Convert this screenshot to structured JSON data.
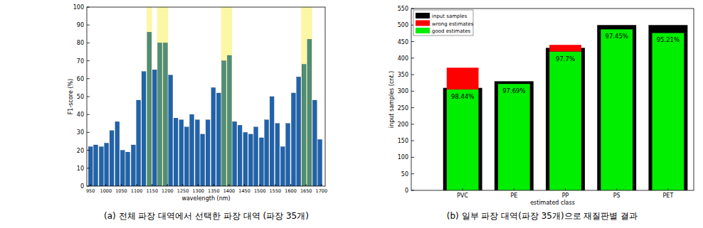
{
  "chart_data": [
    {
      "type": "bar",
      "x_label": "wavelength (nm)",
      "y_label": "F1-score (%)",
      "caption": "(a) 전체 파장 대역에서 선택한 파장 대역 (파장 35개)",
      "x": [
        950,
        967,
        985,
        1002,
        1019,
        1037,
        1054,
        1071,
        1089,
        1106,
        1123,
        1141,
        1158,
        1175,
        1193,
        1210,
        1227,
        1245,
        1262,
        1279,
        1297,
        1314,
        1331,
        1349,
        1366,
        1383,
        1401,
        1418,
        1435,
        1453,
        1470,
        1487,
        1505,
        1522,
        1539,
        1557,
        1574,
        1591,
        1609,
        1626,
        1643,
        1661,
        1678,
        1695
      ],
      "values": [
        22,
        23,
        22,
        24,
        31,
        36,
        20,
        19,
        23,
        48,
        64,
        86,
        65,
        80,
        80,
        62,
        38,
        37,
        33,
        40,
        37,
        29,
        37,
        55,
        52,
        70,
        73,
        36,
        34,
        30,
        29,
        33,
        27,
        37,
        50,
        35,
        22,
        35,
        52,
        61,
        68,
        82,
        48,
        26
      ],
      "colors": [
        "#1f63ad",
        "#1f63ad",
        "#1f63ad",
        "#1f63ad",
        "#1f63ad",
        "#1f63ad",
        "#1f63ad",
        "#1f63ad",
        "#1f63ad",
        "#1f63ad",
        "#1f63ad",
        "#4d8f7a",
        "#1f63ad",
        "#4d8f7a",
        "#4d8f7a",
        "#1f63ad",
        "#1f63ad",
        "#1f63ad",
        "#1f63ad",
        "#1f63ad",
        "#1f63ad",
        "#1f63ad",
        "#1f63ad",
        "#1f63ad",
        "#1f63ad",
        "#4d8f7a",
        "#4d8f7a",
        "#1f63ad",
        "#1f63ad",
        "#1f63ad",
        "#1f63ad",
        "#1f63ad",
        "#1f63ad",
        "#1f63ad",
        "#1f63ad",
        "#1f63ad",
        "#1f63ad",
        "#1f63ad",
        "#1f63ad",
        "#1f63ad",
        "#4d8f7a",
        "#4d8f7a",
        "#1f63ad",
        "#1f63ad"
      ],
      "highlights": [
        [
          1132,
          1150
        ],
        [
          1166,
          1202
        ],
        [
          1374,
          1410
        ],
        [
          1634,
          1670
        ]
      ],
      "xlim": [
        938,
        1712
      ],
      "xticks": [
        950,
        1000,
        1050,
        1100,
        1150,
        1200,
        1250,
        1300,
        1350,
        1400,
        1450,
        1500,
        1550,
        1600,
        1650,
        1700
      ],
      "ylim": [
        0,
        100
      ],
      "yticks": [
        0,
        10,
        20,
        30,
        40,
        50,
        60,
        70,
        80,
        90,
        100
      ],
      "grid": false
    },
    {
      "type": "bar",
      "stacked": true,
      "x_label": "estimated class",
      "y_label": "input samples (cnt.)",
      "caption": "(b) 일부 파장 대역(파장 35개)으로 재질판별 결과",
      "categories": [
        "PVC",
        "PE",
        "PP",
        "PS",
        "PET"
      ],
      "series": [
        {
          "name": "input samples",
          "color": "#000000",
          "type": "overlay",
          "values": [
            310,
            330,
            431,
            500,
            500
          ]
        },
        {
          "name": "wrong estimates",
          "color": "#ff0000",
          "values": [
            66,
            0,
            20,
            0,
            0
          ]
        },
        {
          "name": "good estimates",
          "color": "#00ee00",
          "values": [
            305,
            322,
            420,
            487,
            476
          ]
        }
      ],
      "accuracy": {
        "values": [
          98.44,
          97.69,
          97.7,
          97.45,
          95.21
        ],
        "labels": [
          "98.44%",
          "97.69%",
          "97.7%",
          "97.45%",
          "95.21%"
        ]
      },
      "ylim": [
        0,
        550
      ],
      "yticks": [
        0,
        50,
        100,
        150,
        200,
        250,
        300,
        350,
        400,
        450,
        500,
        550
      ],
      "legend": "upper-left",
      "grid": false
    }
  ]
}
